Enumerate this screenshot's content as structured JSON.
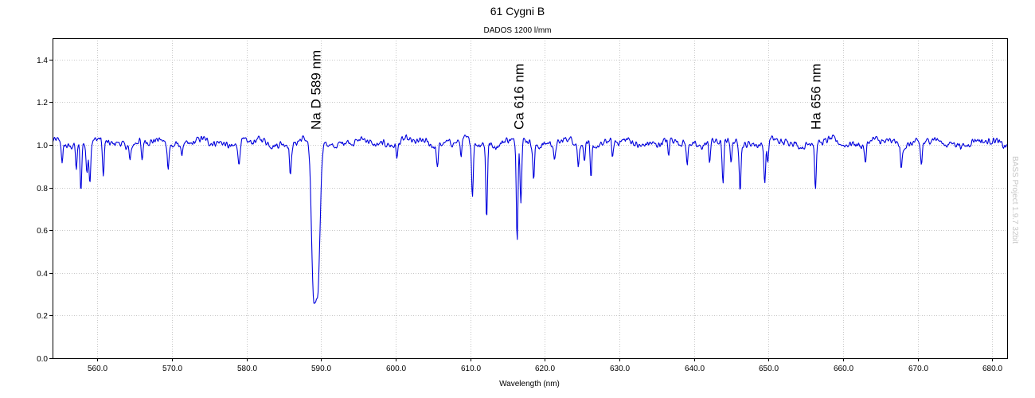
{
  "chart_data": {
    "type": "line",
    "title": "61 Cygni B",
    "subtitle": "DADOS 1200 l/mm",
    "xlabel": "Wavelength (nm)",
    "ylabel": "",
    "xlim": [
      554.0,
      682.0
    ],
    "ylim": [
      0.0,
      1.5
    ],
    "xticks": [
      560.0,
      570.0,
      580.0,
      590.0,
      600.0,
      610.0,
      620.0,
      630.0,
      640.0,
      650.0,
      660.0,
      670.0,
      680.0
    ],
    "xtick_labels": [
      "560.0",
      "570.0",
      "580.0",
      "590.0",
      "600.0",
      "610.0",
      "620.0",
      "630.0",
      "640.0",
      "650.0",
      "660.0",
      "670.0",
      "680.0"
    ],
    "yticks": [
      0.0,
      0.2,
      0.4,
      0.6,
      0.8,
      1.0,
      1.2,
      1.4
    ],
    "ytick_labels": [
      "0.0",
      "0.2",
      "0.4",
      "0.6",
      "0.8",
      "1.0",
      "1.2",
      "1.4"
    ],
    "grid": true,
    "line_color": "#0000dd",
    "continuum": 1.01,
    "absorption_lines": [
      {
        "x": 555.3,
        "depth": 0.09
      },
      {
        "x": 557.2,
        "depth": 0.12
      },
      {
        "x": 557.8,
        "depth": 0.22
      },
      {
        "x": 558.6,
        "depth": 0.14
      },
      {
        "x": 559.0,
        "depth": 0.18
      },
      {
        "x": 560.8,
        "depth": 0.17
      },
      {
        "x": 564.4,
        "depth": 0.07
      },
      {
        "x": 566.0,
        "depth": 0.1
      },
      {
        "x": 569.5,
        "depth": 0.1
      },
      {
        "x": 571.3,
        "depth": 0.06
      },
      {
        "x": 579.0,
        "depth": 0.11
      },
      {
        "x": 585.9,
        "depth": 0.15
      },
      {
        "x": 589.0,
        "depth": 0.69
      },
      {
        "x": 589.6,
        "depth": 0.63
      },
      {
        "x": 600.2,
        "depth": 0.06
      },
      {
        "x": 605.6,
        "depth": 0.1
      },
      {
        "x": 608.8,
        "depth": 0.07
      },
      {
        "x": 610.3,
        "depth": 0.25
      },
      {
        "x": 612.2,
        "depth": 0.35
      },
      {
        "x": 616.3,
        "depth": 0.45
      },
      {
        "x": 616.8,
        "depth": 0.27
      },
      {
        "x": 618.5,
        "depth": 0.16
      },
      {
        "x": 621.3,
        "depth": 0.09
      },
      {
        "x": 624.5,
        "depth": 0.11
      },
      {
        "x": 625.3,
        "depth": 0.08
      },
      {
        "x": 626.2,
        "depth": 0.17
      },
      {
        "x": 629.1,
        "depth": 0.08
      },
      {
        "x": 636.6,
        "depth": 0.08
      },
      {
        "x": 639.1,
        "depth": 0.11
      },
      {
        "x": 642.1,
        "depth": 0.09
      },
      {
        "x": 643.9,
        "depth": 0.21
      },
      {
        "x": 645.0,
        "depth": 0.11
      },
      {
        "x": 646.2,
        "depth": 0.2
      },
      {
        "x": 649.5,
        "depth": 0.19
      },
      {
        "x": 649.9,
        "depth": 0.1
      },
      {
        "x": 656.3,
        "depth": 0.22
      },
      {
        "x": 663.0,
        "depth": 0.09
      },
      {
        "x": 667.8,
        "depth": 0.11
      },
      {
        "x": 670.5,
        "depth": 0.1
      }
    ],
    "annotations": [
      {
        "text": "Na D 589 nm",
        "x": 589.3
      },
      {
        "text": "Ca 616 nm",
        "x": 616.5
      },
      {
        "text": "Ha 656 nm",
        "x": 656.3
      }
    ],
    "watermark": "BASS Project 1.9.7 32bit"
  }
}
